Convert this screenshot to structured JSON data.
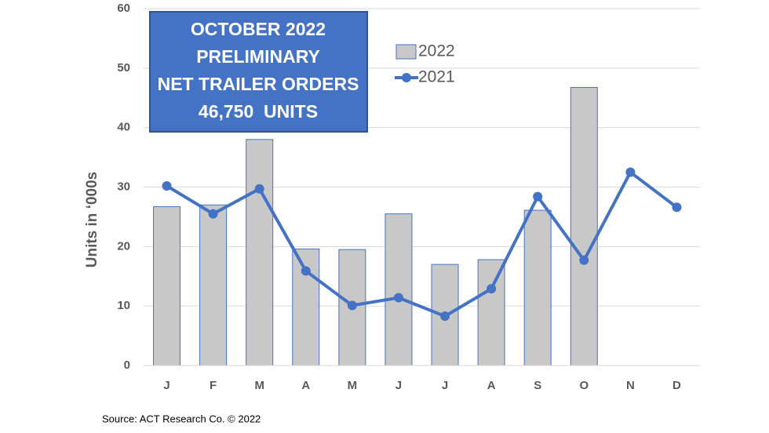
{
  "chart_data": {
    "type": "bar_line",
    "annotation_lines": [
      "OCTOBER 2022",
      "PRELIMINARY",
      "NET TRAILER ORDERS",
      "46,750  UNITS"
    ],
    "y_label": "Units in ‘000s",
    "source": "Source: ACT Research Co.  © 2022",
    "categories": [
      "J",
      "F",
      "M",
      "A",
      "M",
      "J",
      "J",
      "A",
      "S",
      "O",
      "N",
      "D"
    ],
    "series": [
      {
        "name": "2022",
        "type": "bar",
        "color": "#c8c8c8",
        "values": [
          26.7,
          27,
          38,
          19.6,
          19.5,
          25.5,
          17,
          17.8,
          26.1,
          46.75,
          null,
          null
        ]
      },
      {
        "name": "2021",
        "type": "line",
        "color": "#4472c4",
        "values": [
          30.2,
          25.5,
          29.7,
          15.9,
          10.1,
          11.4,
          8.3,
          12.9,
          28.4,
          17.7,
          32.5,
          26.6
        ]
      }
    ],
    "ylim": [
      0,
      60
    ],
    "yticks": [
      0,
      10,
      20,
      30,
      40,
      50,
      60
    ],
    "grid": true
  }
}
